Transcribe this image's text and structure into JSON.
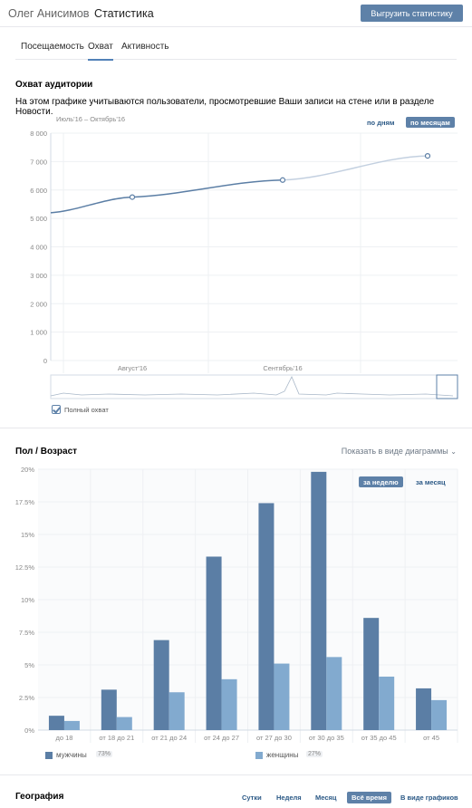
{
  "header": {
    "owner": "Олег Анисимов",
    "separator": "›",
    "page": "Статистика",
    "export_label": "Выгрузить статистику"
  },
  "tabs": [
    "Посещаемость",
    "Охват",
    "Активность"
  ],
  "reach": {
    "title": "Охват аудитории",
    "description": "На этом графике учитываются пользователи, просмотревшие Ваши записи на стене или в разделе Новости.",
    "period": "Июль'16 – Октябрь'16",
    "by_days": "по дням",
    "by_months": "по месяцам",
    "full_reach": "Полный охват"
  },
  "gender_age": {
    "title": "Пол / Возраст",
    "show_as": "Показать в виде диаграммы",
    "week": "за неделю",
    "month": "за месяц",
    "legend": {
      "male": "мужчины",
      "male_pct": "73%",
      "female": "женщины",
      "female_pct": "27%"
    }
  },
  "geo": {
    "title": "География",
    "buttons": [
      "Сутки",
      "Неделя",
      "Месяц",
      "Всё время",
      "В виде графиков"
    ]
  },
  "colors": {
    "male": "#5b7ea5",
    "female": "#82aacf",
    "line": "#5b7ea5",
    "line_faded": "#c3d0e0"
  },
  "chart_data": [
    {
      "type": "line",
      "x": [
        "Июль'16",
        "Август'16",
        "Сентябрь'16",
        "Октябрь'16"
      ],
      "series": [
        {
          "values": [
            5200,
            5750,
            6350,
            7200
          ]
        }
      ],
      "xlabel": "",
      "ylabel": "",
      "yticks": [
        "8 000",
        "7 000",
        "6 000",
        "5 000",
        "4 000",
        "3 000",
        "2 000",
        "1 000",
        "0"
      ],
      "xticks": [
        "Август'16",
        "Сентябрь'16"
      ],
      "ylim": [
        0,
        8000
      ],
      "grid": true
    },
    {
      "type": "bar",
      "categories": [
        "до 18",
        "от 18 до 21",
        "от 21 до 24",
        "от 24 до 27",
        "от 27 до 30",
        "от 30 до 35",
        "от 35 до 45",
        "от 45"
      ],
      "series": [
        {
          "name": "мужчины",
          "values": [
            1.1,
            3.1,
            6.9,
            13.3,
            17.4,
            19.8,
            8.6,
            3.2
          ]
        },
        {
          "name": "женщины",
          "values": [
            0.7,
            1.0,
            2.9,
            3.9,
            5.1,
            5.6,
            4.1,
            2.3
          ]
        }
      ],
      "yticks": [
        "20%",
        "17.5%",
        "15%",
        "12.5%",
        "10%",
        "7.5%",
        "5%",
        "2.5%",
        "0%"
      ],
      "xlabel": "",
      "ylabel": "",
      "ylim": [
        0,
        20
      ],
      "grid": true,
      "legend": "bottom"
    }
  ]
}
